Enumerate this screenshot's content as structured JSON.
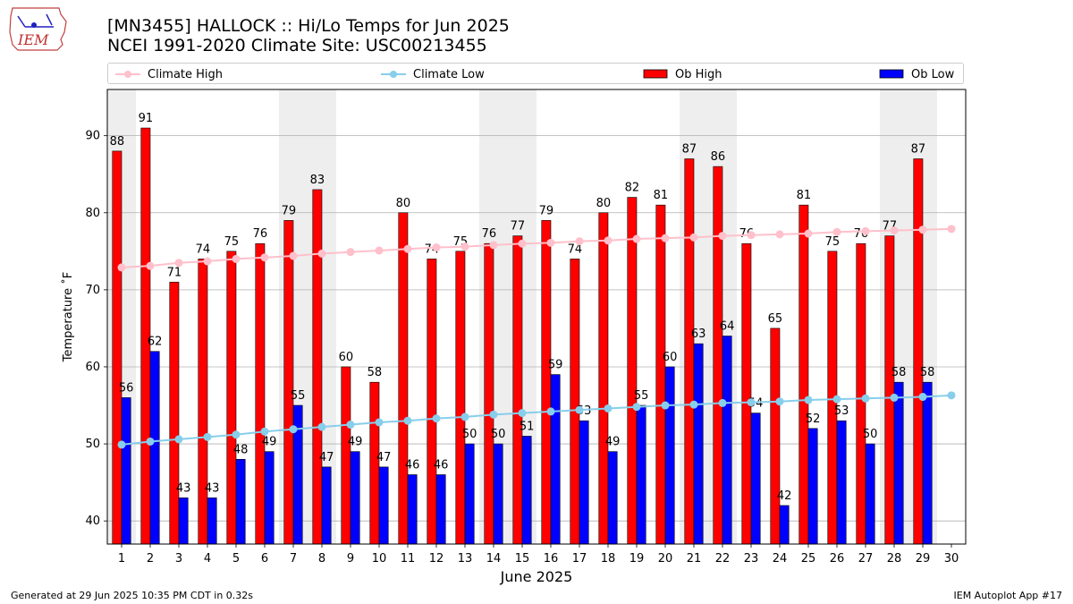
{
  "header": {
    "title_line1": "[MN3455] HALLOCK :: Hi/Lo Temps for Jun 2025",
    "title_line2": "NCEI 1991-2020 Climate Site: USC00213455",
    "logo_text": "IEM"
  },
  "footer": {
    "left": "Generated at 29 Jun 2025 10:35 PM CDT in 0.32s",
    "right": "IEM Autoplot App #17"
  },
  "colors": {
    "ob_high": "#ff0000",
    "ob_low": "#0000ff",
    "climate_high": "#ffc0cb",
    "climate_low": "#87ceeb",
    "weekend_band": "#eeeeee",
    "grid": "#b0b0b0"
  },
  "chart_data": {
    "type": "bar",
    "xlabel": "June 2025",
    "ylabel": "Temperature ˚F",
    "ylim": [
      37,
      96
    ],
    "yticks": [
      40,
      50,
      60,
      70,
      80,
      90
    ],
    "xlim": [
      0.5,
      30.5
    ],
    "categories": [
      1,
      2,
      3,
      4,
      5,
      6,
      7,
      8,
      9,
      10,
      11,
      12,
      13,
      14,
      15,
      16,
      17,
      18,
      19,
      20,
      21,
      22,
      23,
      24,
      25,
      26,
      27,
      28,
      29,
      30
    ],
    "shaded_days": [
      1,
      7,
      8,
      14,
      15,
      21,
      22,
      28,
      29
    ],
    "grid": "horizontal",
    "legend_position": "top",
    "series": [
      {
        "name": "Ob High",
        "kind": "bar",
        "values": [
          88,
          91,
          71,
          74,
          75,
          76,
          79,
          83,
          60,
          58,
          80,
          74,
          75,
          76,
          77,
          79,
          74,
          80,
          82,
          81,
          87,
          86,
          76,
          65,
          81,
          75,
          76,
          77,
          87,
          null
        ]
      },
      {
        "name": "Ob Low",
        "kind": "bar",
        "values": [
          56,
          62,
          43,
          43,
          48,
          49,
          55,
          47,
          49,
          47,
          46,
          46,
          50,
          50,
          51,
          59,
          53,
          49,
          55,
          60,
          63,
          64,
          54,
          42,
          52,
          53,
          50,
          58,
          58,
          null
        ]
      },
      {
        "name": "Climate High",
        "kind": "line",
        "values": [
          72.9,
          73.1,
          73.5,
          73.7,
          74.0,
          74.2,
          74.4,
          74.7,
          74.9,
          75.1,
          75.3,
          75.5,
          75.6,
          75.8,
          76.0,
          76.1,
          76.3,
          76.4,
          76.6,
          76.7,
          76.8,
          77.0,
          77.1,
          77.2,
          77.3,
          77.5,
          77.6,
          77.7,
          77.8,
          77.9
        ]
      },
      {
        "name": "Climate Low",
        "kind": "line",
        "values": [
          49.9,
          50.3,
          50.6,
          50.9,
          51.2,
          51.6,
          51.9,
          52.2,
          52.5,
          52.8,
          53.0,
          53.3,
          53.5,
          53.8,
          54.0,
          54.2,
          54.4,
          54.6,
          54.8,
          55.0,
          55.1,
          55.3,
          55.4,
          55.5,
          55.7,
          55.8,
          55.9,
          56.0,
          56.1,
          56.3
        ]
      }
    ]
  }
}
